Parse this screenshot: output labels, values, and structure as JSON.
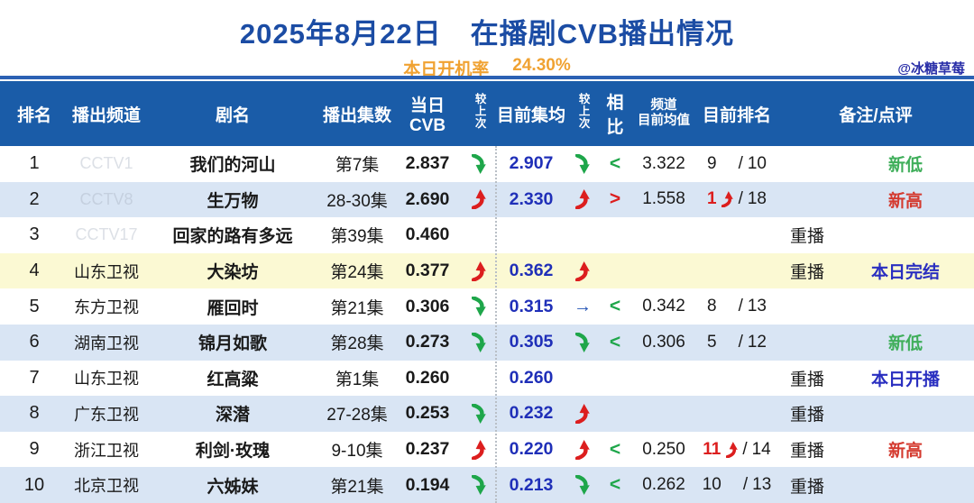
{
  "watermark": "@冰糖草莓",
  "colors": {
    "title_blue": "#1B4CA4",
    "orange": "#F0A232",
    "header_bg": "#1A5CA8",
    "alt_row_blue": "#D9E5F4",
    "highlight_yellow": "#FBF9D3",
    "value_blue": "#1F2FB8",
    "green": "#1EA64A",
    "red": "#DC1E1E",
    "comment_green": "#3FAE5A",
    "comment_red": "#D43A2F",
    "comment_blue": "#2A2FC0"
  },
  "chart_data": {
    "type": "table",
    "title": "2025年8月22日　在播剧CVB播出情况",
    "subtitle_label": "本日开机率",
    "subtitle_value": "24.30%",
    "header": {
      "rank": "排名",
      "channel": "播出频道",
      "drama": "剧名",
      "episodes": "播出集数",
      "daily_cvb": "当日CVB",
      "vs_last_daily": "较上次",
      "current_avg": "目前集均",
      "vs_last_avg": "较上次",
      "compare": "相比",
      "channel_avg_line1": "频道",
      "channel_avg_line2": "目前均值",
      "current_rank": "目前排名",
      "remark": "备注/点评"
    },
    "rows": [
      {
        "rank": "1",
        "channel": "CCTV1",
        "channel_faded": true,
        "drama": "我们的河山",
        "episodes": "第7集",
        "daily_cvb": "2.837",
        "trend_daily": "down",
        "current_avg": "2.907",
        "trend_avg": "down",
        "compare": "<",
        "channel_avg": "3.322",
        "rank_now": "9",
        "rank_now_red": false,
        "rank_arrow": "",
        "rank_total": "10",
        "replay": "",
        "comment": "新低",
        "comment_color": "green",
        "row_bg": "white"
      },
      {
        "rank": "2",
        "channel": "CCTV8",
        "channel_faded": true,
        "drama": "生万物",
        "episodes": "28-30集",
        "daily_cvb": "2.690",
        "trend_daily": "up",
        "current_avg": "2.330",
        "trend_avg": "up",
        "compare": ">",
        "channel_avg": "1.558",
        "rank_now": "1",
        "rank_now_red": true,
        "rank_arrow": "up",
        "rank_total": "18",
        "replay": "",
        "comment": "新高",
        "comment_color": "red",
        "row_bg": "blue"
      },
      {
        "rank": "3",
        "channel": "CCTV17",
        "channel_faded": true,
        "drama": "回家的路有多远",
        "episodes": "第39集",
        "daily_cvb": "0.460",
        "trend_daily": "",
        "current_avg": "",
        "trend_avg": "",
        "compare": "",
        "channel_avg": "",
        "rank_now": "",
        "rank_now_red": false,
        "rank_arrow": "",
        "rank_total": "",
        "replay": "重播",
        "comment": "",
        "comment_color": "",
        "row_bg": "white"
      },
      {
        "rank": "4",
        "channel": "山东卫视",
        "channel_faded": false,
        "drama": "大染坊",
        "episodes": "第24集",
        "daily_cvb": "0.377",
        "trend_daily": "up",
        "current_avg": "0.362",
        "trend_avg": "up",
        "compare": "",
        "channel_avg": "",
        "rank_now": "",
        "rank_now_red": false,
        "rank_arrow": "",
        "rank_total": "",
        "replay": "重播",
        "comment": "本日完结",
        "comment_color": "blue",
        "row_bg": "yellow"
      },
      {
        "rank": "5",
        "channel": "东方卫视",
        "channel_faded": false,
        "drama": "雁回时",
        "episodes": "第21集",
        "daily_cvb": "0.306",
        "trend_daily": "down",
        "current_avg": "0.315",
        "trend_avg": "right",
        "compare": "<",
        "channel_avg": "0.342",
        "rank_now": "8",
        "rank_now_red": false,
        "rank_arrow": "",
        "rank_total": "13",
        "replay": "",
        "comment": "",
        "comment_color": "",
        "row_bg": "white"
      },
      {
        "rank": "6",
        "channel": "湖南卫视",
        "channel_faded": false,
        "drama": "锦月如歌",
        "episodes": "第28集",
        "daily_cvb": "0.273",
        "trend_daily": "down",
        "current_avg": "0.305",
        "trend_avg": "down",
        "compare": "<",
        "channel_avg": "0.306",
        "rank_now": "5",
        "rank_now_red": false,
        "rank_arrow": "",
        "rank_total": "12",
        "replay": "",
        "comment": "新低",
        "comment_color": "green",
        "row_bg": "blue"
      },
      {
        "rank": "7",
        "channel": "山东卫视",
        "channel_faded": false,
        "drama": "红高粱",
        "episodes": "第1集",
        "daily_cvb": "0.260",
        "trend_daily": "",
        "current_avg": "0.260",
        "trend_avg": "",
        "compare": "",
        "channel_avg": "",
        "rank_now": "",
        "rank_now_red": false,
        "rank_arrow": "",
        "rank_total": "",
        "replay": "重播",
        "comment": "本日开播",
        "comment_color": "blue",
        "row_bg": "white"
      },
      {
        "rank": "8",
        "channel": "广东卫视",
        "channel_faded": false,
        "drama": "深潜",
        "episodes": "27-28集",
        "daily_cvb": "0.253",
        "trend_daily": "down",
        "current_avg": "0.232",
        "trend_avg": "up",
        "compare": "",
        "channel_avg": "",
        "rank_now": "",
        "rank_now_red": false,
        "rank_arrow": "",
        "rank_total": "",
        "replay": "重播",
        "comment": "",
        "comment_color": "",
        "row_bg": "blue"
      },
      {
        "rank": "9",
        "channel": "浙江卫视",
        "channel_faded": false,
        "drama": "利剑·玫瑰",
        "episodes": "9-10集",
        "daily_cvb": "0.237",
        "trend_daily": "up",
        "current_avg": "0.220",
        "trend_avg": "up",
        "compare": "<",
        "channel_avg": "0.250",
        "rank_now": "11",
        "rank_now_red": true,
        "rank_arrow": "up",
        "rank_total": "14",
        "replay": "重播",
        "comment": "新高",
        "comment_color": "red",
        "row_bg": "white"
      },
      {
        "rank": "10",
        "channel": "北京卫视",
        "channel_faded": false,
        "drama": "六姊妹",
        "episodes": "第21集",
        "daily_cvb": "0.194",
        "trend_daily": "down",
        "current_avg": "0.213",
        "trend_avg": "down",
        "compare": "<",
        "channel_avg": "0.262",
        "rank_now": "10",
        "rank_now_red": false,
        "rank_arrow": "",
        "rank_total": "13",
        "replay": "重播",
        "comment": "",
        "comment_color": "",
        "row_bg": "blue"
      }
    ]
  }
}
